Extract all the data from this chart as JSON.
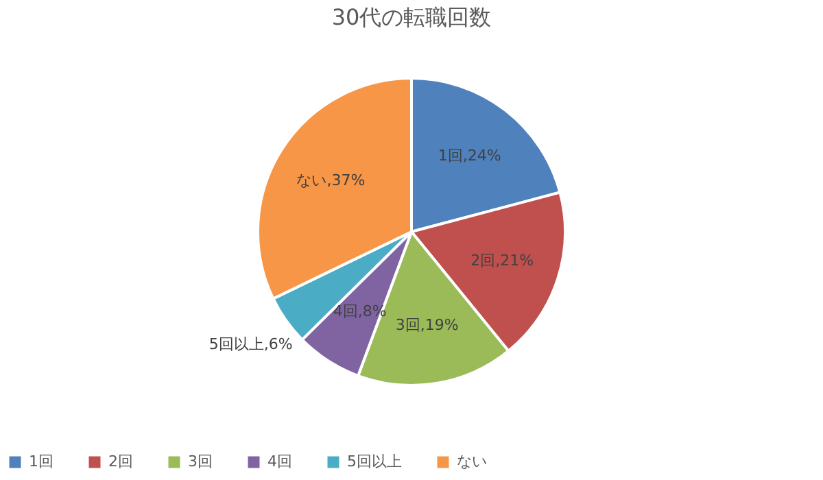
{
  "chart_data": {
    "type": "pie",
    "title": "30代の転職回数",
    "categories": [
      "1回",
      "2回",
      "3回",
      "4回",
      "5回以上",
      "ない"
    ],
    "values": [
      24,
      21,
      19,
      8,
      6,
      37
    ],
    "colors": [
      "#4f81bd",
      "#c0504d",
      "#9bbb59",
      "#8064a2",
      "#4bacc6",
      "#f79646"
    ],
    "value_labels": [
      "1回,24%",
      "2回,21%",
      "3回,19%",
      "4回,8%",
      "5回以上,6%",
      "ない,37%"
    ],
    "legend": "bottom"
  }
}
